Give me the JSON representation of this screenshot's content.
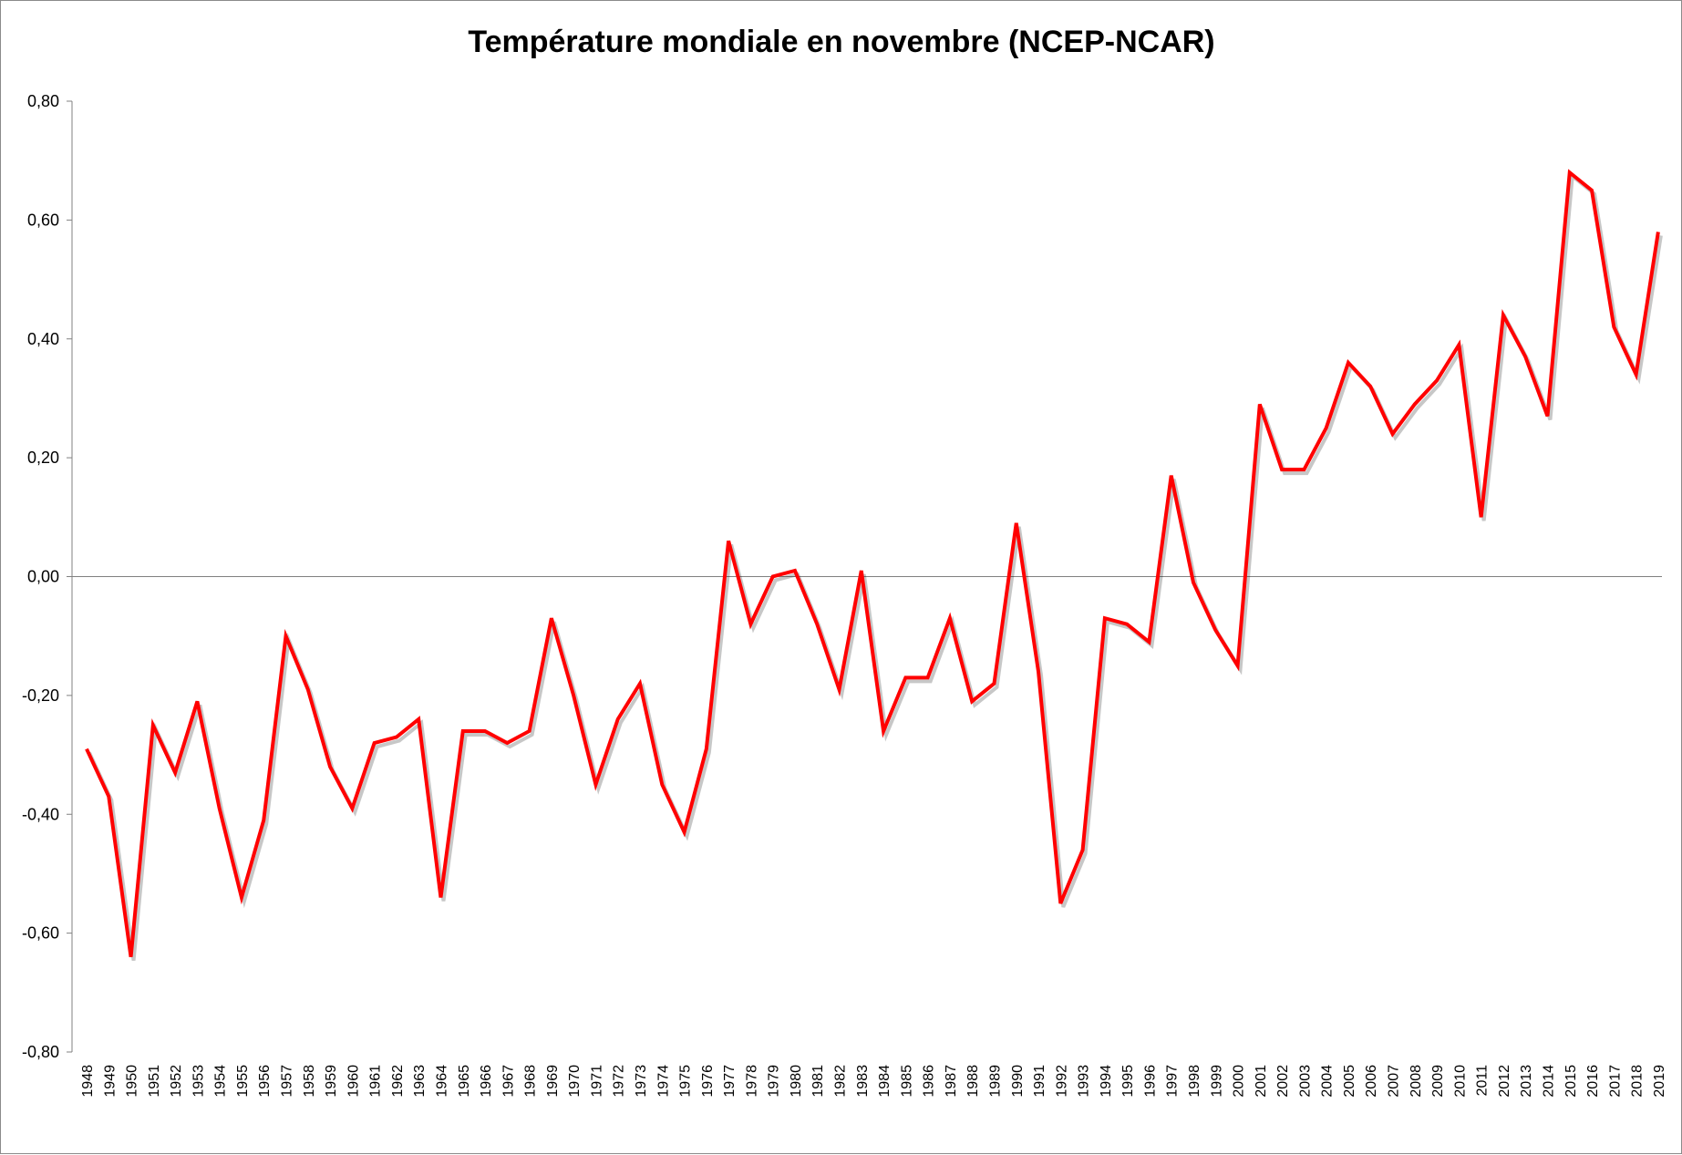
{
  "chart_data": {
    "type": "line",
    "title": "Température mondiale en novembre (NCEP-NCAR)",
    "xlabel": "",
    "ylabel": "",
    "ylim": [
      -0.8,
      0.8
    ],
    "yticks": [
      0.8,
      0.6,
      0.4,
      0.2,
      0.0,
      -0.2,
      -0.4,
      -0.6,
      -0.8
    ],
    "ytick_labels": [
      "0,80",
      "0,60",
      "0,40",
      "0,20",
      "0,00",
      "-0,20",
      "-0,40",
      "-0,60",
      "-0,80"
    ],
    "grid": false,
    "legend": "none",
    "categories": [
      "1948",
      "1949",
      "1950",
      "1951",
      "1952",
      "1953",
      "1954",
      "1955",
      "1956",
      "1957",
      "1958",
      "1959",
      "1960",
      "1961",
      "1962",
      "1963",
      "1964",
      "1965",
      "1966",
      "1967",
      "1968",
      "1969",
      "1970",
      "1971",
      "1972",
      "1973",
      "1974",
      "1975",
      "1976",
      "1977",
      "1978",
      "1979",
      "1980",
      "1981",
      "1982",
      "1983",
      "1984",
      "1985",
      "1986",
      "1987",
      "1988",
      "1989",
      "1990",
      "1991",
      "1992",
      "1993",
      "1994",
      "1995",
      "1996",
      "1997",
      "1998",
      "1999",
      "2000",
      "2001",
      "2002",
      "2003",
      "2004",
      "2005",
      "2006",
      "2007",
      "2008",
      "2009",
      "2010",
      "2011",
      "2012",
      "2013",
      "2014",
      "2015",
      "2016",
      "2017",
      "2018",
      "2019"
    ],
    "series": [
      {
        "name": "Température mondiale en novembre",
        "color": "#ff0000",
        "values": [
          -0.29,
          -0.37,
          -0.64,
          -0.25,
          -0.33,
          -0.21,
          -0.39,
          -0.54,
          -0.41,
          -0.1,
          -0.19,
          -0.32,
          -0.39,
          -0.28,
          -0.27,
          -0.24,
          -0.54,
          -0.26,
          -0.26,
          -0.28,
          -0.26,
          -0.07,
          -0.2,
          -0.35,
          -0.24,
          -0.18,
          -0.35,
          -0.43,
          -0.29,
          0.06,
          -0.08,
          0.0,
          0.01,
          -0.08,
          -0.19,
          0.01,
          -0.26,
          -0.17,
          -0.17,
          -0.07,
          -0.21,
          -0.18,
          0.09,
          -0.16,
          -0.55,
          -0.46,
          -0.07,
          -0.08,
          -0.11,
          0.17,
          -0.01,
          -0.09,
          -0.15,
          0.29,
          0.18,
          0.18,
          0.25,
          0.36,
          0.32,
          0.24,
          0.29,
          0.33,
          0.39,
          0.1,
          0.44,
          0.37,
          0.27,
          0.68,
          0.65,
          0.42,
          0.34,
          0.58
        ]
      }
    ]
  },
  "colors": {
    "line": "#ff0000",
    "axis": "#808080",
    "frame": "#8a8a8a"
  }
}
